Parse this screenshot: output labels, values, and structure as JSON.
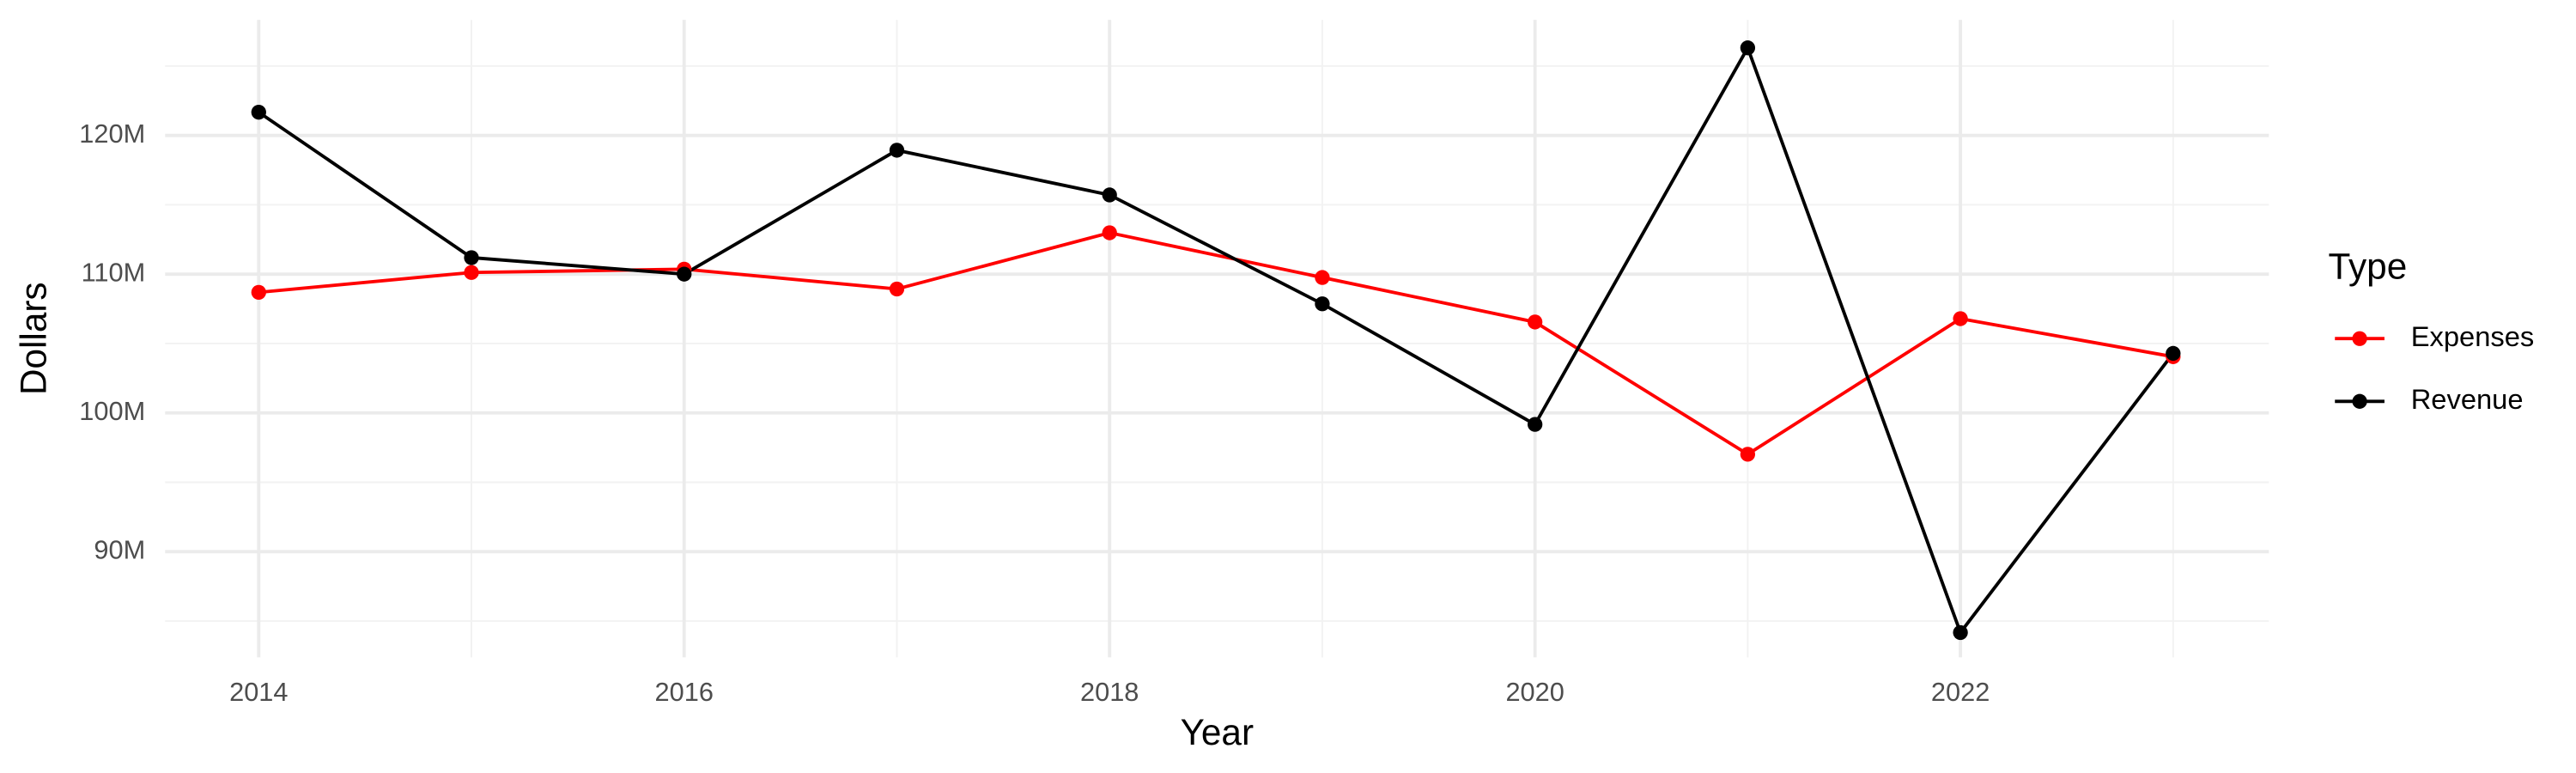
{
  "chart_data": {
    "type": "line",
    "x_label": "Year",
    "y_label": "Dollars",
    "legend_title": "Type",
    "x": [
      2014,
      2015,
      2016,
      2017,
      2018,
      2019,
      2020,
      2021,
      2022,
      2023
    ],
    "series": [
      {
        "name": "Expenses",
        "color": "#ff0000",
        "values": [
          108690000,
          110120000,
          110360000,
          108930000,
          112980000,
          109760000,
          106550000,
          97020000,
          106790000,
          104050000
        ]
      },
      {
        "name": "Revenue",
        "color": "#000000",
        "values": [
          121670000,
          111190000,
          110000000,
          118930000,
          115710000,
          107860000,
          99170000,
          126310000,
          84170000,
          104290000
        ]
      }
    ],
    "xlim": [
      2013.56,
      2023.45
    ],
    "xticks": [
      2014,
      2016,
      2018,
      2020,
      2022
    ],
    "ylim": [
      82380000,
      128330000
    ],
    "yticks": [
      {
        "value": 90000000,
        "label": "90M"
      },
      {
        "value": 100000000,
        "label": "100M"
      },
      {
        "value": 110000000,
        "label": "110M"
      },
      {
        "value": 120000000,
        "label": "120M"
      }
    ],
    "grid": true,
    "legend": "right"
  }
}
